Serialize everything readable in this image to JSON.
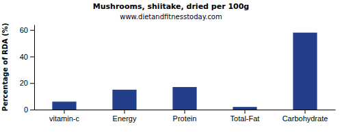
{
  "chart_data": {
    "type": "bar",
    "title": "Mushrooms, shiitake, dried per 100g",
    "subtitle": "www.dietandfitnesstoday.com",
    "y_label": "Percentage of RDA (%)",
    "categories": [
      "vitamin-c",
      "Energy",
      "Protein",
      "Total-Fat",
      "Carbohydrate"
    ],
    "values": [
      6,
      15,
      17,
      2,
      58
    ],
    "color": "#233f8c",
    "ylim": [
      0,
      64
    ],
    "yticks": [
      0,
      20,
      40,
      60
    ],
    "grid": false
  }
}
